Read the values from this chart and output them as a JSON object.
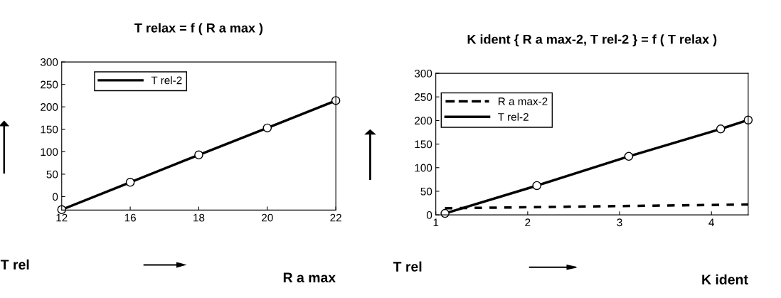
{
  "chart_data": [
    {
      "type": "line",
      "title": "T relax = f ( R a max )",
      "xlabel": "R a max",
      "ylabel": "T rel",
      "categories": [
        "12",
        "16",
        "18",
        "20",
        "22"
      ],
      "series": [
        {
          "name": "T rel-2",
          "color": "#000000",
          "values": [
            -29,
            32,
            93,
            153,
            214
          ],
          "marker": "circle",
          "line_style": "solid"
        }
      ],
      "ylim": [
        -30,
        300
      ],
      "yticks": [
        0,
        50,
        100,
        150,
        200,
        250,
        300
      ],
      "grid": false,
      "legend": "top left"
    },
    {
      "type": "line",
      "title": "K ident { R a max-2, T rel-2 } = f ( T relax )",
      "xlabel": "K ident",
      "ylabel": "T rel",
      "series": [
        {
          "name": "R a max-2",
          "color": "#000000",
          "x": [
            1.1,
            4.4
          ],
          "values": [
            14,
            22
          ],
          "marker": "none",
          "line_style": "dashed"
        },
        {
          "name": "T rel-2",
          "color": "#000000",
          "x": [
            1.1,
            2.1,
            3.1,
            4.1,
            4.4
          ],
          "values": [
            3,
            62,
            124,
            182,
            201
          ],
          "marker": "circle",
          "line_style": "solid"
        }
      ],
      "xlim": [
        1,
        4.4
      ],
      "xticks": [
        1,
        2,
        3,
        4
      ],
      "ylim": [
        0,
        300
      ],
      "yticks": [
        0,
        50,
        100,
        150,
        200,
        250,
        300
      ],
      "grid": false,
      "legend": "top left"
    }
  ]
}
